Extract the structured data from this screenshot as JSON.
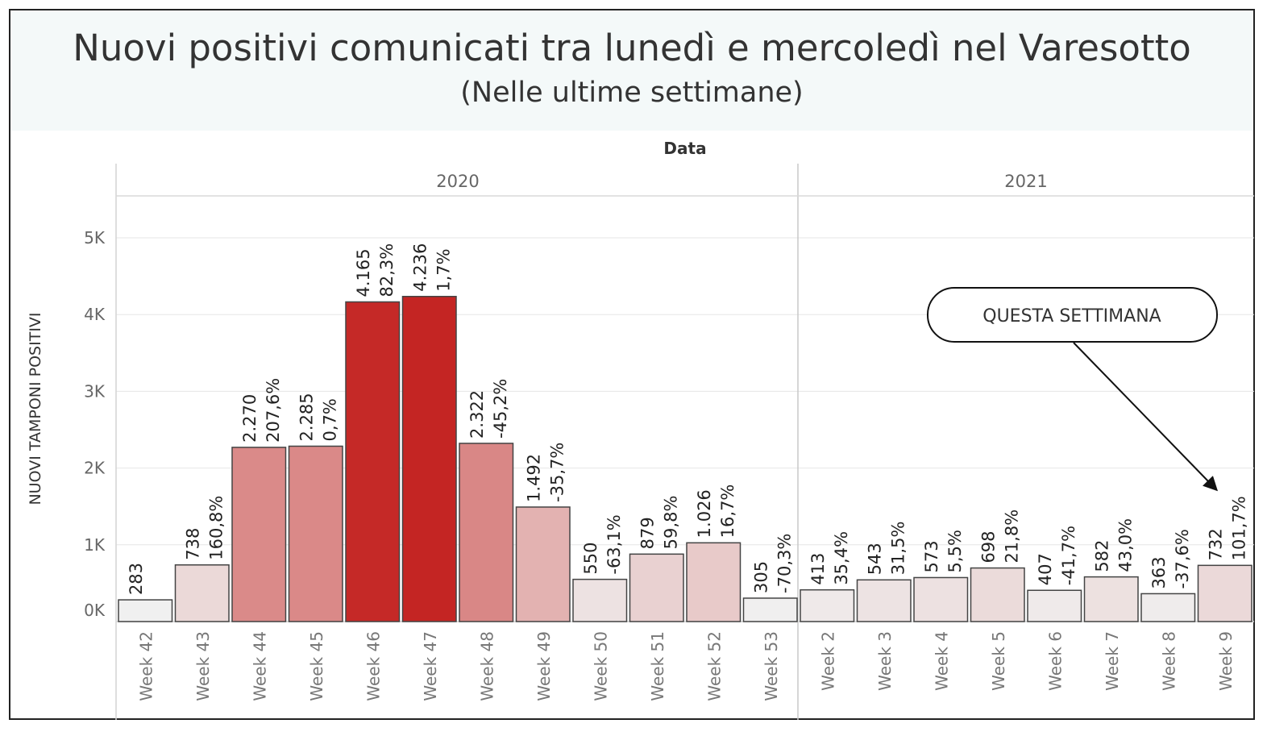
{
  "header": {
    "title": "Nuovi positivi comunicati tra lunedì e mercoledì nel Varesotto",
    "subtitle": "(Nelle ultime settimane)"
  },
  "annotation": {
    "label": "QUESTA SETTIMANA",
    "target_category": "Week 9"
  },
  "colors": {
    "header_bg": "#f4f9f9",
    "bar_stroke": "#444444",
    "grid": "#e6e6e6",
    "scale_low": "#f0f0f0",
    "scale_high": "#c42523"
  },
  "chart_data": {
    "type": "bar",
    "column_header": "Data",
    "ylabel": "NUOVI TAMPONI POSITIVI",
    "ylim": [
      0,
      5500
    ],
    "yticks": [
      {
        "value": 0,
        "label": "0K"
      },
      {
        "value": 1000,
        "label": "1K"
      },
      {
        "value": 2000,
        "label": "2K"
      },
      {
        "value": 3000,
        "label": "3K"
      },
      {
        "value": 4000,
        "label": "4K"
      },
      {
        "value": 5000,
        "label": "5K"
      }
    ],
    "grid": true,
    "groups": [
      {
        "label": "2020",
        "categories": [
          "Week 42",
          "Week 43",
          "Week 44",
          "Week 45",
          "Week 46",
          "Week 47",
          "Week 48",
          "Week 49",
          "Week 50",
          "Week 51",
          "Week 52",
          "Week 53"
        ]
      },
      {
        "label": "2021",
        "categories": [
          "Week 2",
          "Week 3",
          "Week 4",
          "Week 5",
          "Week 6",
          "Week 7",
          "Week 8",
          "Week 9"
        ]
      }
    ],
    "bars": [
      {
        "category": "Week 42",
        "value": 283,
        "label": "283",
        "change": ""
      },
      {
        "category": "Week 43",
        "value": 738,
        "label": "738",
        "change": "160,8%"
      },
      {
        "category": "Week 44",
        "value": 2270,
        "label": "2.270",
        "change": "207,6%"
      },
      {
        "category": "Week 45",
        "value": 2285,
        "label": "2.285",
        "change": "0,7%"
      },
      {
        "category": "Week 46",
        "value": 4165,
        "label": "4.165",
        "change": "82,3%"
      },
      {
        "category": "Week 47",
        "value": 4236,
        "label": "4.236",
        "change": "1,7%"
      },
      {
        "category": "Week 48",
        "value": 2322,
        "label": "2.322",
        "change": "-45,2%"
      },
      {
        "category": "Week 49",
        "value": 1492,
        "label": "1.492",
        "change": "-35,7%"
      },
      {
        "category": "Week 50",
        "value": 550,
        "label": "550",
        "change": "-63,1%"
      },
      {
        "category": "Week 51",
        "value": 879,
        "label": "879",
        "change": "59,8%"
      },
      {
        "category": "Week 52",
        "value": 1026,
        "label": "1.026",
        "change": "16,7%"
      },
      {
        "category": "Week 53",
        "value": 305,
        "label": "305",
        "change": "-70,3%"
      },
      {
        "category": "Week 2",
        "value": 413,
        "label": "413",
        "change": "35,4%"
      },
      {
        "category": "Week 3",
        "value": 543,
        "label": "543",
        "change": "31,5%"
      },
      {
        "category": "Week 4",
        "value": 573,
        "label": "573",
        "change": "5,5%"
      },
      {
        "category": "Week 5",
        "value": 698,
        "label": "698",
        "change": "21,8%"
      },
      {
        "category": "Week 6",
        "value": 407,
        "label": "407",
        "change": "-41,7%"
      },
      {
        "category": "Week 7",
        "value": 582,
        "label": "582",
        "change": "43,0%"
      },
      {
        "category": "Week 8",
        "value": 363,
        "label": "363",
        "change": "-37,6%"
      },
      {
        "category": "Week 9",
        "value": 732,
        "label": "732",
        "change": "101,7%"
      }
    ]
  }
}
